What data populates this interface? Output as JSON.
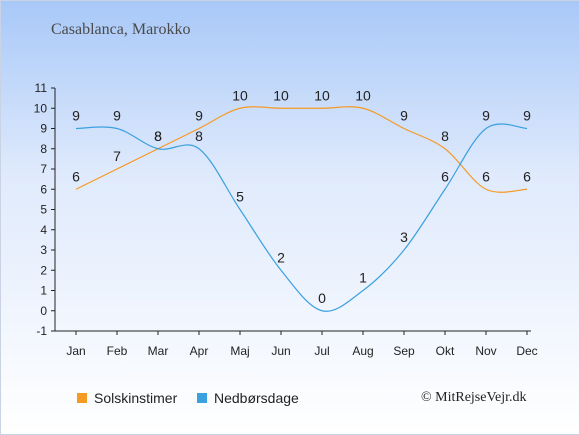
{
  "page": {
    "title": "Casablanca, Marokko",
    "copyright": "© MitRejseVejr.dk"
  },
  "colors": {
    "sun": "#f59a23",
    "rain": "#3aa0e0"
  },
  "chart_data": {
    "type": "line",
    "title": "Casablanca, Marokko",
    "categories": [
      "Jan",
      "Feb",
      "Mar",
      "Apr",
      "Maj",
      "Jun",
      "Jul",
      "Aug",
      "Sep",
      "Okt",
      "Nov",
      "Dec"
    ],
    "y_ticks": [
      "-1",
      "0",
      "1",
      "2",
      "3",
      "4",
      "5",
      "6",
      "7",
      "8",
      "9",
      "10",
      "11"
    ],
    "ylim": [
      -1,
      11
    ],
    "grid": false,
    "legend_position": "bottom-left",
    "series": [
      {
        "name": "Solskinstimer",
        "color": "#f59a23",
        "values": [
          6,
          7,
          8,
          9,
          10,
          10,
          10,
          10,
          9,
          8,
          6,
          6
        ],
        "labels": [
          "6",
          "7",
          "8",
          "9",
          "10",
          "10",
          "10",
          "10",
          "9",
          "8",
          "6",
          "6"
        ]
      },
      {
        "name": "Nedbørsdage",
        "color": "#3aa0e0",
        "values": [
          9,
          9,
          8,
          8,
          5,
          2,
          0,
          1,
          3,
          6,
          9,
          9
        ],
        "labels": [
          "9",
          "9",
          "8",
          "8",
          "5",
          "2",
          "0",
          "1",
          "3",
          "6",
          "9",
          "9"
        ]
      }
    ]
  }
}
